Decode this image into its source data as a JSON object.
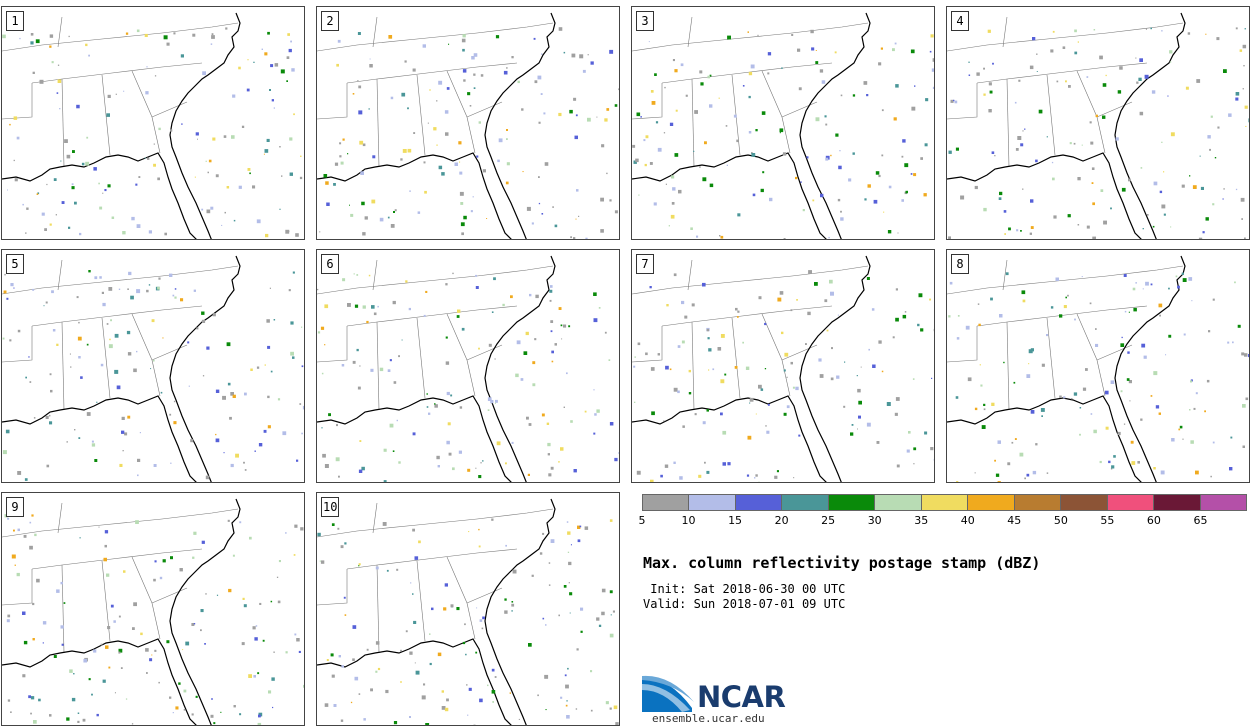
{
  "title": "Max. column reflectivity postage stamp (dBZ)",
  "init_text": " Init: Sat 2018-06-30 00 UTC",
  "valid_text": "Valid: Sun 2018-07-01 09 UTC",
  "panels": [
    {
      "label": "1"
    },
    {
      "label": "2"
    },
    {
      "label": "3"
    },
    {
      "label": "4"
    },
    {
      "label": "5"
    },
    {
      "label": "6"
    },
    {
      "label": "7"
    },
    {
      "label": "8"
    },
    {
      "label": "9"
    },
    {
      "label": "10"
    }
  ],
  "colorbar": {
    "units": "dBZ",
    "ticks": [
      5,
      10,
      15,
      20,
      25,
      30,
      35,
      40,
      45,
      50,
      55,
      60,
      65
    ],
    "colors": [
      "#a0a0a0",
      "#b3bde8",
      "#5660d8",
      "#4a9698",
      "#0a8a0a",
      "#b8dcb4",
      "#f0dc60",
      "#f0aa1e",
      "#b87c30",
      "#8c5436",
      "#f0507c",
      "#6a1836",
      "#b450a8"
    ]
  },
  "logo": {
    "text": "NCAR",
    "url_text": "ensemble.ucar.edu"
  }
}
